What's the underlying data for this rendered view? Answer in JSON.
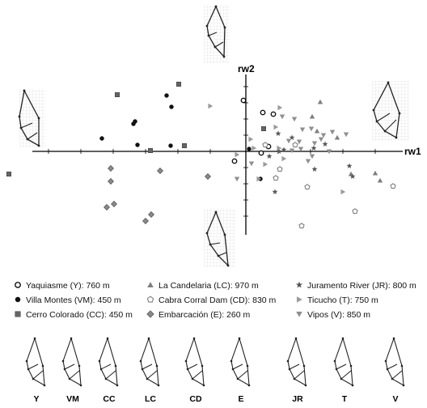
{
  "chart_data": {
    "type": "scatter",
    "xlabel": "rw1",
    "ylabel": "rw2",
    "grid": false,
    "legend_position": "bottom",
    "xlim": [
      -0.33,
      0.2
    ],
    "ylim": [
      -0.12,
      0.12
    ],
    "series": [
      {
        "name": "Yaquiasme (Y): 760 m",
        "code": "Y",
        "marker": "circle-open",
        "color": "#111111",
        "points": [
          [
            -0.003,
            0.063
          ],
          [
            0.034,
            0.046
          ],
          [
            0.021,
            0.048
          ],
          [
            0.028,
            0.006
          ],
          [
            -0.014,
            -0.012
          ],
          [
            0.019,
            -0.002
          ]
        ]
      },
      {
        "name": "Villa Montes (VM): 450 m",
        "code": "VM",
        "marker": "circle-filled",
        "color": "#111111",
        "points": [
          [
            -0.178,
            0.016
          ],
          [
            -0.139,
            0.034
          ],
          [
            -0.137,
            0.037
          ],
          [
            -0.098,
            0.069
          ],
          [
            -0.092,
            0.055
          ],
          [
            -0.134,
            0.008
          ],
          [
            -0.093,
            0.007
          ],
          [
            0.004,
            0.003
          ],
          [
            0.018,
            -0.034
          ]
        ]
      },
      {
        "name": "Cerro Colorado (CC): 450 m",
        "code": "CC",
        "marker": "square",
        "color": "#666666",
        "points": [
          [
            -0.293,
            -0.028
          ],
          [
            -0.159,
            0.07
          ],
          [
            -0.118,
            0.001
          ],
          [
            -0.083,
            0.083
          ],
          [
            -0.076,
            0.007
          ],
          [
            0.022,
            0.028
          ]
        ]
      },
      {
        "name": "La Candelaria (LC): 970 m",
        "code": "LC",
        "marker": "triangle-up",
        "color": "#7f7f7f",
        "points": [
          [
            0.092,
            0.061
          ],
          [
            0.082,
            0.043
          ],
          [
            0.088,
            0.025
          ],
          [
            0.13,
            -0.028
          ],
          [
            0.16,
            -0.027
          ],
          [
            0.166,
            -0.036
          ],
          [
            0.113,
            0.017
          ]
        ]
      },
      {
        "name": "Cabra Corral Dam (CD): 830 m",
        "code": "CD",
        "marker": "pentagon-open",
        "color": "#7f7f7f",
        "points": [
          [
            0.061,
            0.008
          ],
          [
            0.042,
            -0.022
          ],
          [
            0.037,
            -0.033
          ],
          [
            0.076,
            -0.044
          ],
          [
            0.069,
            -0.092
          ],
          [
            0.135,
            -0.074
          ],
          [
            0.182,
            -0.043
          ],
          [
            0.024,
            0.008
          ]
        ]
      },
      {
        "name": "Embarcación (E): 260 m",
        "code": "E",
        "marker": "diamond",
        "color": "#8a8a8a",
        "points": [
          [
            -0.167,
            -0.021
          ],
          [
            -0.167,
            -0.037
          ],
          [
            -0.106,
            -0.024
          ],
          [
            -0.047,
            -0.031
          ],
          [
            -0.172,
            -0.069
          ],
          [
            -0.163,
            -0.065
          ],
          [
            -0.124,
            -0.086
          ],
          [
            -0.117,
            -0.078
          ]
        ]
      },
      {
        "name": "Juramento River (JR): 800 m",
        "code": "JR",
        "marker": "star",
        "color": "#555555",
        "points": [
          [
            0.04,
            0.022
          ],
          [
            0.041,
            0.0
          ],
          [
            0.057,
            0.017
          ],
          [
            0.047,
            0.002
          ],
          [
            0.084,
            0.004
          ],
          [
            0.098,
            0.009
          ],
          [
            0.128,
            -0.018
          ],
          [
            0.132,
            -0.031
          ],
          [
            0.085,
            -0.022
          ],
          [
            0.036,
            -0.05
          ],
          [
            0.029,
            -0.006
          ]
        ]
      },
      {
        "name": "Ticucho (T): 750 m",
        "code": "T",
        "marker": "triangle-right",
        "color": "#9a9a9a",
        "points": [
          [
            -0.044,
            0.056
          ],
          [
            0.042,
            0.054
          ],
          [
            0.006,
            0.015
          ],
          [
            0.01,
            0.004
          ],
          [
            0.037,
            0.03
          ],
          [
            0.041,
            0.004
          ],
          [
            0.047,
            -0.009
          ],
          [
            0.12,
            -0.05
          ],
          [
            0.016,
            -0.034
          ],
          [
            -0.011,
            -0.004
          ],
          [
            0.024,
            -0.016
          ]
        ]
      },
      {
        "name": "Vipos (V): 850 m",
        "code": "V",
        "marker": "triangle-down",
        "color": "#8f8f8f",
        "points": [
          [
            0.06,
            0.04
          ],
          [
            0.07,
            0.027
          ],
          [
            0.081,
            0.028
          ],
          [
            0.066,
            0.012
          ],
          [
            0.096,
            0.02
          ],
          [
            0.107,
            0.024
          ],
          [
            0.124,
            0.021
          ],
          [
            0.093,
            0.015
          ],
          [
            0.085,
            0.01
          ],
          [
            0.103,
            0.0
          ],
          [
            0.082,
            -0.006
          ],
          [
            0.077,
            -0.012
          ],
          [
            0.068,
            0.003
          ],
          [
            0.057,
            0.001
          ],
          [
            0.053,
            0.013
          ],
          [
            0.045,
            0.043
          ],
          [
            -0.011,
            -0.034
          ],
          [
            0.007,
            -0.015
          ]
        ]
      }
    ]
  }
}
